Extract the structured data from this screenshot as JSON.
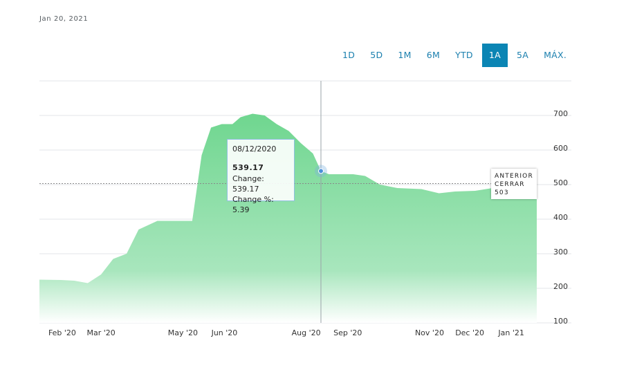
{
  "header": {
    "date": "Jan 20, 2021"
  },
  "range_tabs": [
    {
      "label": "1D",
      "active": false
    },
    {
      "label": "5D",
      "active": false
    },
    {
      "label": "1M",
      "active": false
    },
    {
      "label": "6M",
      "active": false
    },
    {
      "label": "YTD",
      "active": false
    },
    {
      "label": "1A",
      "active": true
    },
    {
      "label": "5A",
      "active": false
    },
    {
      "label": "MÁX.",
      "active": false
    }
  ],
  "tooltip": {
    "date": "08/12/2020",
    "value": "539.17",
    "change": "Change: 539.17",
    "change_pct": "Change %: 5.39"
  },
  "previous_close": {
    "line1": "ANTERIOR",
    "line2": "CERRAR",
    "value": "503"
  },
  "colors": {
    "fill_top": "#6fd68f",
    "fill_bottom": "#ffffff",
    "accent": "#0b85b4"
  },
  "chart_data": {
    "type": "area",
    "x": [
      "2020-01-15",
      "2020-01-31",
      "2020-02-10",
      "2020-02-20",
      "2020-03-01",
      "2020-03-10",
      "2020-03-20",
      "2020-03-29",
      "2020-04-12",
      "2020-04-27",
      "2020-05-08",
      "2020-05-15",
      "2020-05-22",
      "2020-05-30",
      "2020-06-07",
      "2020-06-13",
      "2020-06-22",
      "2020-07-01",
      "2020-07-10",
      "2020-07-19",
      "2020-07-28",
      "2020-08-06",
      "2020-08-12",
      "2020-08-18",
      "2020-08-27",
      "2020-09-05",
      "2020-09-14",
      "2020-09-25",
      "2020-10-08",
      "2020-10-26",
      "2020-11-08",
      "2020-11-20",
      "2020-12-05",
      "2020-12-18",
      "2021-01-05",
      "2021-01-20"
    ],
    "y": [
      225,
      224,
      222,
      215,
      240,
      285,
      300,
      370,
      395,
      395,
      395,
      585,
      665,
      675,
      675,
      695,
      705,
      700,
      675,
      655,
      620,
      590,
      539.17,
      530,
      530,
      530,
      525,
      500,
      490,
      487,
      475,
      480,
      482,
      490,
      490,
      495
    ],
    "x_ticks": [
      "Feb '20",
      "Mar '20",
      "May '20",
      "Jun '20",
      "Aug '20",
      "Sep '20",
      "Nov '20",
      "Dec '20",
      "Jan '21"
    ],
    "x_tick_dates": [
      "2020-02-01",
      "2020-03-01",
      "2020-05-01",
      "2020-06-01",
      "2020-08-01",
      "2020-09-01",
      "2020-11-01",
      "2020-12-01",
      "2021-01-01"
    ],
    "y_ticks": [
      100,
      200,
      300,
      400,
      500,
      600,
      700
    ],
    "ylim": [
      100,
      800
    ],
    "xlim": [
      "2020-01-15",
      "2021-01-20"
    ],
    "reference_line": 503,
    "hover_date": "2020-08-12",
    "grid": true
  }
}
